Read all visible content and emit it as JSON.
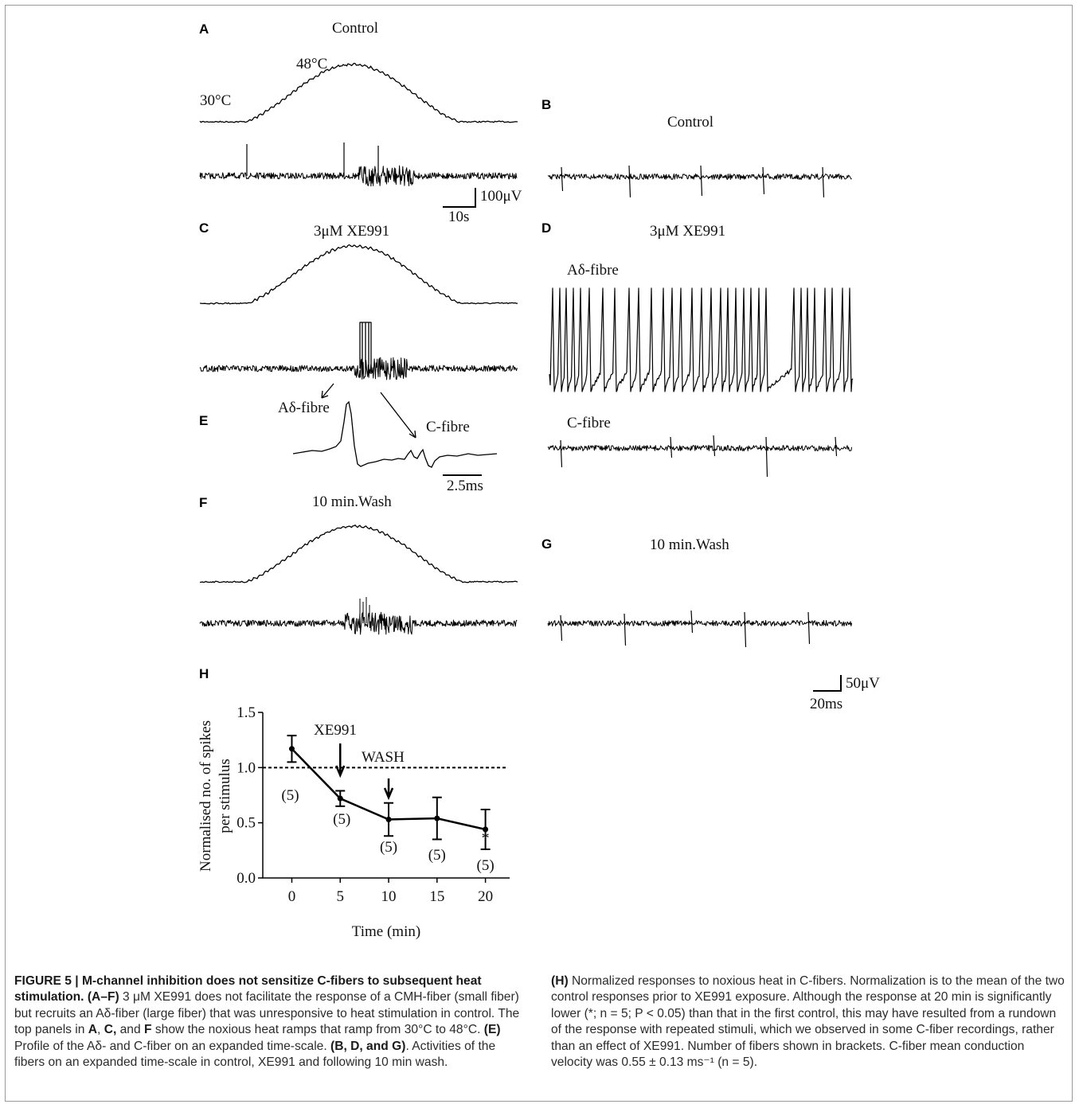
{
  "panels": {
    "A": {
      "letter": "A",
      "title": "Control",
      "temp_start": "30°C",
      "temp_peak": "48°C"
    },
    "B": {
      "letter": "B",
      "title": "Control"
    },
    "C": {
      "letter": "C",
      "title": "3μM XE991"
    },
    "D": {
      "letter": "D",
      "title": "3μM XE991",
      "label_adelta": "Aδ-fibre",
      "label_c": "C-fibre"
    },
    "E": {
      "letter": "E",
      "label_adelta": "Aδ-fibre",
      "label_c": "C-fibre"
    },
    "F": {
      "letter": "F",
      "title": "10 min.Wash"
    },
    "G": {
      "letter": "G",
      "title": "10 min.Wash"
    },
    "H": {
      "letter": "H"
    }
  },
  "scalebars": {
    "slow_v": "100μV",
    "slow_t": "10s",
    "expanded_t": "2.5ms",
    "fast_v": "50μV",
    "fast_t": "20ms"
  },
  "chart_data": {
    "type": "line",
    "xlabel": "Time (min)",
    "ylabel": "Normalised no. of spikes per stimulus",
    "ylabel_lines": [
      "Normalised no. of spikes",
      "per stimulus"
    ],
    "x": [
      0,
      5,
      10,
      15,
      20
    ],
    "xticks": [
      "0",
      "5",
      "10",
      "15",
      "20"
    ],
    "yticks": [
      "0.0",
      "0.5",
      "1.0",
      "1.5"
    ],
    "xlim": [
      -3,
      22.5
    ],
    "ylim": [
      0,
      1.5
    ],
    "series": [
      {
        "values": [
          1.17,
          0.72,
          0.53,
          0.54,
          0.44
        ],
        "errors": [
          0.12,
          0.07,
          0.15,
          0.19,
          0.18
        ]
      }
    ],
    "n_labels": [
      "(5)",
      "(5)",
      "(5)",
      "(5)",
      "(5)"
    ],
    "reference_line": 1.0,
    "annotations": {
      "xe991": "XE991",
      "wash": "WASH",
      "significance": "*"
    }
  },
  "caption": {
    "figure_label": "FIGURE 5 | M-channel inhibition does not sensitize C-fibers to subsequent heat stimulation.",
    "p1_label": "(A–F)",
    "p1_text": " 3 μM XE991 does not facilitate the response of a CMH-fiber (small fiber) but recruits an Aδ-fiber (large fiber) that was unresponsive to heat stimulation in control. The top panels in ",
    "p1_A": "A",
    "p1_sep1": ", ",
    "p1_C": "C,",
    "p1_and": " and ",
    "p1_F": "F",
    "p1_text2": " show the noxious heat ramps that ramp from 30°C to 48°C. ",
    "p2_label": "(E)",
    "p2_text": " Profile of the Aδ- and C-fiber on an expanded time-scale. ",
    "p3_label": "(B, D, and G)",
    "p3_text": ". Activities of the fibers on an expanded time-scale in control, XE991 and following 10 min wash. ",
    "p4_label": "(H)",
    "p4_text": " Normalized responses to noxious heat in C-fibers. Normalization is to the mean of the two control responses prior to XE991 exposure. Although the response at 20 min is significantly lower (*; n = 5; P < 0.05) than that in the first control, this may have resulted from a rundown of the response with repeated stimuli, which we observed in some C-fiber recordings, rather than an effect of XE991. Number of fibers shown in brackets. C-fiber mean conduction velocity was 0.55 ± 0.13 ms⁻¹ (n = 5)."
  }
}
